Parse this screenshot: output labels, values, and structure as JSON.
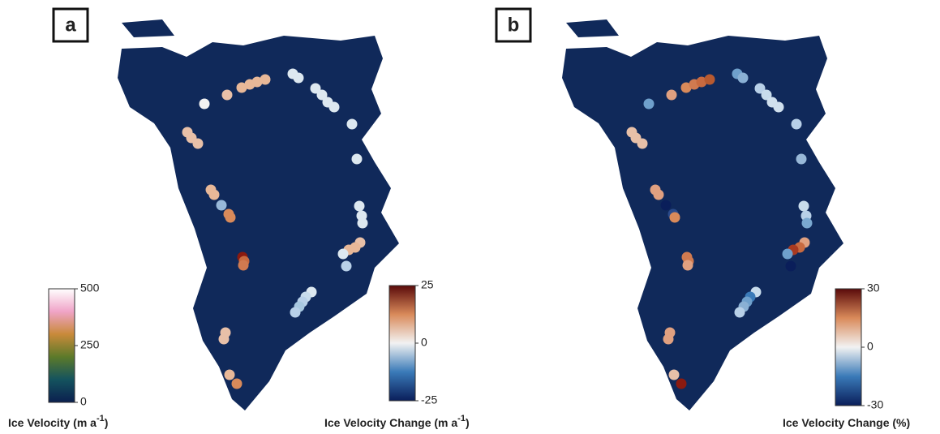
{
  "panels": [
    {
      "label": "a",
      "colorbars": [
        {
          "title": [
            "Ice Velocity (m a",
            "-1",
            ")"
          ],
          "lim": [
            0,
            500
          ],
          "ticks": [
            0,
            250,
            500
          ],
          "colors": [
            "#0b1f4f",
            "#14535e",
            "#5c7a2a",
            "#c98a3a",
            "#f0a4c8",
            "#ffffff"
          ]
        },
        {
          "title": [
            "Ice Velocity Change (m a",
            "-1",
            ")"
          ],
          "lim": [
            -25,
            25
          ],
          "ticks": [
            -25,
            0,
            25
          ],
          "colors": [
            "#0a1e5a",
            "#3a7ab8",
            "#f2f2f2",
            "#d98a5a",
            "#5a0a0a"
          ]
        }
      ]
    },
    {
      "label": "b",
      "colorbars": [
        {
          "title": [
            "Ice Velocity Change (%)"
          ],
          "lim": [
            -30,
            30
          ],
          "ticks": [
            -30,
            0,
            30
          ],
          "colors": [
            "#0a1e5a",
            "#3a7ab8",
            "#f2f2f2",
            "#d98a5a",
            "#5a0a0a"
          ]
        }
      ]
    }
  ]
}
